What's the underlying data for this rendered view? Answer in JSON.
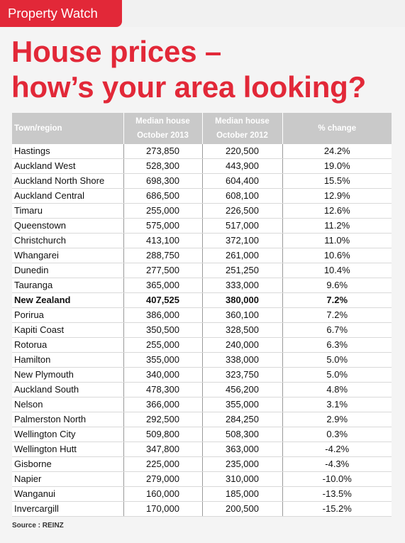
{
  "header": {
    "tag_label": "Property Watch",
    "tag_color": "#e22838"
  },
  "title": {
    "line1": "House prices –",
    "line2": "how’s your area looking?"
  },
  "table": {
    "columns": [
      {
        "line1": "Town/region",
        "line2": ""
      },
      {
        "line1": "Median house",
        "line2": "October 2013"
      },
      {
        "line1": "Median house",
        "line2": "October 2012"
      },
      {
        "line1": "% change",
        "line2": ""
      }
    ],
    "rows": [
      {
        "town": "Hastings",
        "oct2013": "273,850",
        "oct2012": "220,500",
        "change": "24.2%"
      },
      {
        "town": "Auckland West",
        "oct2013": "528,300",
        "oct2012": "443,900",
        "change": "19.0%"
      },
      {
        "town": "Auckland North Shore",
        "oct2013": "698,300",
        "oct2012": "604,400",
        "change": "15.5%"
      },
      {
        "town": "Auckland Central",
        "oct2013": "686,500",
        "oct2012": "608,100",
        "change": "12.9%"
      },
      {
        "town": "Timaru",
        "oct2013": "255,000",
        "oct2012": "226,500",
        "change": "12.6%"
      },
      {
        "town": "Queenstown",
        "oct2013": "575,000",
        "oct2012": "517,000",
        "change": "11.2%"
      },
      {
        "town": "Christchurch",
        "oct2013": "413,100",
        "oct2012": "372,100",
        "change": "11.0%"
      },
      {
        "town": "Whangarei",
        "oct2013": "288,750",
        "oct2012": "261,000",
        "change": "10.6%"
      },
      {
        "town": "Dunedin",
        "oct2013": "277,500",
        "oct2012": "251,250",
        "change": "10.4%"
      },
      {
        "town": "Tauranga",
        "oct2013": "365,000",
        "oct2012": "333,000",
        "change": "9.6%"
      },
      {
        "town": "New Zealand",
        "oct2013": "407,525",
        "oct2012": "380,000",
        "change": "7.2%",
        "bold": true
      },
      {
        "town": "Porirua",
        "oct2013": "386,000",
        "oct2012": "360,100",
        "change": "7.2%"
      },
      {
        "town": "Kapiti Coast",
        "oct2013": "350,500",
        "oct2012": "328,500",
        "change": "6.7%"
      },
      {
        "town": "Rotorua",
        "oct2013": "255,000",
        "oct2012": "240,000",
        "change": "6.3%"
      },
      {
        "town": "Hamilton",
        "oct2013": "355,000",
        "oct2012": "338,000",
        "change": "5.0%"
      },
      {
        "town": "New Plymouth",
        "oct2013": "340,000",
        "oct2012": "323,750",
        "change": "5.0%"
      },
      {
        "town": "Auckland South",
        "oct2013": "478,300",
        "oct2012": "456,200",
        "change": "4.8%"
      },
      {
        "town": "Nelson",
        "oct2013": "366,000",
        "oct2012": "355,000",
        "change": "3.1%"
      },
      {
        "town": "Palmerston North",
        "oct2013": "292,500",
        "oct2012": "284,250",
        "change": "2.9%"
      },
      {
        "town": "Wellington City",
        "oct2013": "509,800",
        "oct2012": "508,300",
        "change": "0.3%"
      },
      {
        "town": "Wellington Hutt",
        "oct2013": "347,800",
        "oct2012": "363,000",
        "change": "-4.2%"
      },
      {
        "town": "Gisborne",
        "oct2013": "225,000",
        "oct2012": "235,000",
        "change": "-4.3%"
      },
      {
        "town": "Napier",
        "oct2013": "279,000",
        "oct2012": "310,000",
        "change": "-10.0%"
      },
      {
        "town": "Wanganui",
        "oct2013": "160,000",
        "oct2012": "185,000",
        "change": "-13.5%"
      },
      {
        "town": "Invercargill",
        "oct2013": "170,000",
        "oct2012": "200,500",
        "change": "-15.2%"
      }
    ]
  },
  "source": "Source : REINZ"
}
